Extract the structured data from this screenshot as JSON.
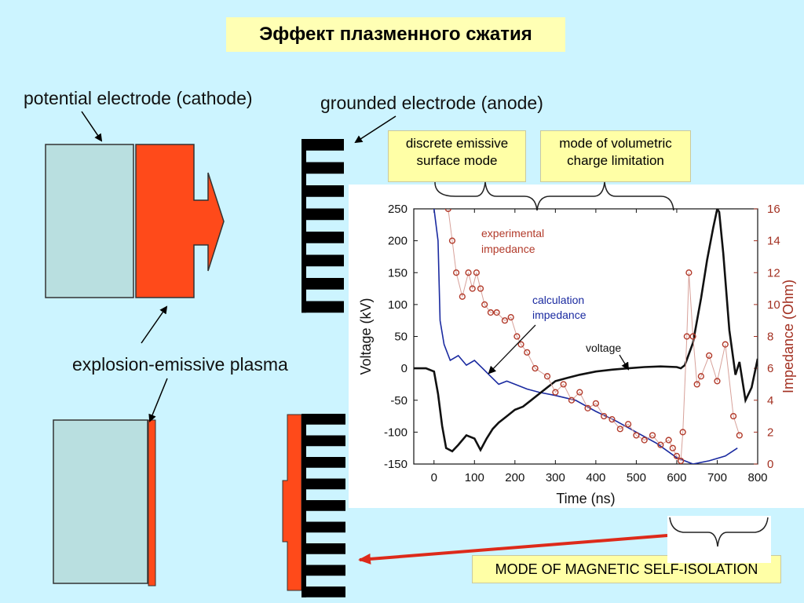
{
  "title": "Эффект плазменного сжатия",
  "labels": {
    "cathode": "potential electrode (cathode)",
    "anode": "grounded electrode (anode)",
    "plasma": "explosion-emissive plasma"
  },
  "modes": {
    "discrete_line1": "discrete emissive",
    "discrete_line2": "surface mode",
    "volumetric_line1": "mode of volumetric",
    "volumetric_line2": "charge limitation",
    "magnetic": "MODE OF MAGNETIC SELF-ISOLATION"
  },
  "colors": {
    "cathode_fill": "#b9dfe0",
    "plasma_fill": "#ff4a1a",
    "arrow": "#dd2a1a",
    "voltage": "#111111",
    "experimental": "#b23a2a",
    "calculation": "#1a2aa0"
  },
  "chart_data": {
    "type": "line",
    "xlabel": "Time (ns)",
    "ylabel": "Voltage (kV)",
    "y2label": "Impedance (Ohm)",
    "xlim": [
      -50,
      800
    ],
    "ylim": [
      -150,
      250
    ],
    "y2lim": [
      0,
      16
    ],
    "xticks": [
      "0",
      "100",
      "200",
      "300",
      "400",
      "500",
      "600",
      "700",
      "800"
    ],
    "yticks": [
      "-150",
      "-100",
      "-50",
      "0",
      "50",
      "100",
      "150",
      "200",
      "250"
    ],
    "y2ticks": [
      "0",
      "2",
      "4",
      "6",
      "8",
      "10",
      "12",
      "14",
      "16"
    ],
    "annotations": {
      "experimental_line1": "experimental",
      "experimental_line2": "impedance",
      "calculation_line1": "calculation",
      "calculation_line2": "impedance",
      "voltage": "voltage"
    },
    "series": [
      {
        "axis": "left",
        "x": [
          -50,
          -20,
          0,
          10,
          20,
          30,
          45,
          60,
          80,
          100,
          115,
          130,
          145,
          160,
          180,
          200,
          220,
          240,
          260,
          280,
          300,
          330,
          360,
          400,
          440,
          480,
          520,
          560,
          600,
          610,
          620,
          640,
          660,
          675,
          690,
          700,
          705,
          715,
          730,
          745,
          755,
          770,
          785,
          800
        ],
        "values": [
          0,
          0,
          -5,
          -40,
          -90,
          -125,
          -130,
          -120,
          -105,
          -110,
          -128,
          -110,
          -95,
          -85,
          -75,
          -65,
          -60,
          -50,
          -40,
          -30,
          -20,
          -15,
          -10,
          -5,
          -2,
          0,
          2,
          3,
          2,
          0,
          5,
          40,
          110,
          170,
          220,
          250,
          245,
          180,
          60,
          -10,
          10,
          -50,
          -30,
          15
        ]
      },
      {
        "axis": "right",
        "x": [
          0,
          10,
          15,
          25,
          40,
          60,
          80,
          100,
          120,
          140,
          160,
          180,
          200,
          230,
          260,
          300,
          350,
          400,
          450,
          500,
          550,
          600,
          640,
          680,
          720,
          750
        ],
        "values": [
          16,
          14,
          9,
          7.5,
          6.5,
          6.8,
          6.2,
          6.5,
          6,
          5.5,
          5,
          5.2,
          5,
          4.7,
          4.5,
          4.3,
          4,
          3.3,
          2.7,
          2,
          1.3,
          0.4,
          0,
          0.2,
          0.5,
          1
        ]
      },
      {
        "axis": "right",
        "x": [
          35,
          45,
          55,
          70,
          85,
          95,
          105,
          115,
          125,
          140,
          155,
          175,
          190,
          205,
          215,
          230,
          250,
          280,
          300,
          320,
          340,
          360,
          380,
          400,
          420,
          440,
          460,
          480,
          500,
          520,
          540,
          560,
          580,
          590,
          600,
          610,
          615,
          625,
          630,
          640,
          650,
          660,
          680,
          700,
          720,
          740,
          755
        ],
        "values": [
          16,
          14,
          12,
          10.5,
          12,
          11,
          12,
          11,
          10,
          9.5,
          9.5,
          9,
          9.2,
          8,
          7.5,
          7,
          6,
          5.5,
          4.5,
          5,
          4,
          4.5,
          3.5,
          3.8,
          3,
          2.8,
          2.2,
          2.5,
          1.8,
          1.5,
          1.8,
          1.2,
          1.5,
          1,
          0.5,
          0.2,
          2,
          8,
          12,
          8,
          5,
          5.5,
          6.8,
          5.2,
          7.5,
          3,
          1.8
        ]
      }
    ]
  }
}
